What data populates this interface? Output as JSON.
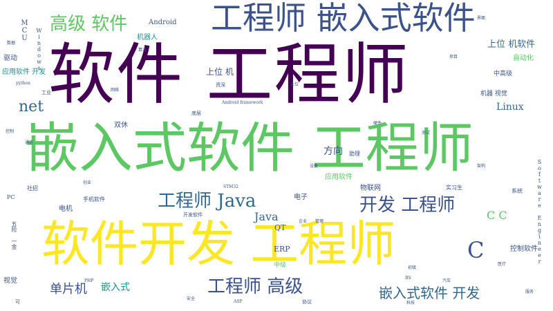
{
  "palette": {
    "dark_purple": "#440154",
    "indigo": "#3b528b",
    "teal": "#21908d",
    "green": "#5dc863",
    "yellow": "#fde725",
    "navy": "#31688e",
    "lime": "#a0da39"
  },
  "words": {
    "w_ruanjian_gongchengshi": "软件 工程师",
    "w_qianrushi_ruanjian_gongchengshi": "嵌入式软件 工程师",
    "w_ruanjian_kaifa_gongchengshi": "软件开发 工程师",
    "w_gongchengshi_qianrushi_ruanjian": "工程师 嵌入式软件",
    "w_gaoji_ruanjian": "高级 软件",
    "w_gongchengshi_java": "工程师 Java",
    "w_kaifa_gongchengshi": "开发 工程师",
    "w_gongchengshi_gaoji": "工程师 高级",
    "w_qianrushi_ruanjian_kaifa": "嵌入式软件 开发",
    "w_net": "net",
    "w_c": "C",
    "w_c_c": "C C",
    "w_java": "Java",
    "w_linux": "Linux",
    "w_danpianji": "单片机",
    "w_qianrushi": "嵌入式",
    "w_shangwei_ji": "上位 机",
    "w_shangwei_jiruanjian": "上位 机软件",
    "w_fangxiang": "方向",
    "w_qt": "QT",
    "w_erp": "ERP",
    "w_android": "Android",
    "w_jiqiren": "机器人",
    "w_qudong": "驱动",
    "w_yingyong_ruanjian_kaifa": "应用软件 开发",
    "w_shuangxiu": "双休",
    "w_dianji": "电机",
    "w_shijue": "视觉",
    "w_zidonghua": "自动化",
    "w_kongzhi_ruanjian": "控制软件",
    "w_yingyong_ruanjian": "应用软件",
    "w_wulianwang": "物联网",
    "w_dianzi": "电子",
    "w_zhongji": "中级",
    "w_jiqi_shijue": "机器 视觉",
    "w_zhonggaoji": "中高级",
    "w_mcu": "MCU",
    "w_windows": "Windows",
    "w_software_engineer": "Software Engineer",
    "w_wuxian_yijin": "五险 一金",
    "w_zhulang": "助理",
    "w_shouji_ruanjian": "手机软件",
    "w_kaifa_ruanjian": "开发软件",
    "w_xitong": "系统",
    "w_python": "python",
    "w_android_framework": "Android framework",
    "w_pc": "PC",
    "w_bs": "BS",
    "w_asp": "ASP",
    "w_php": "PHP",
    "w_stm32": "STM32",
    "w_gongye": "工业",
    "w_kuaisu": "资深",
    "w_dixin": "底层",
    "w_zhaopin": "社招",
    "w_xieyi": "协议",
    "w_shixisheng": "实习生",
    "w_chuanji": "初级",
    "w_shangwei": "上位",
    "w_chuangye": "创业",
    "w_qiye": "企业",
    "w_guanli": "管理",
    "w_ceshi": "测试",
    "w_suanfa": "算法",
    "w_yingjian": "硬件",
    "w_shebei": "设备",
    "w_xiangmu": "项目",
    "w_shuju": "数据",
    "w_jiemian": "界面",
    "w_tongxin": "通信",
    "w_kongzhi": "控制",
    "w_yiliao": "医疗",
    "w_qiche": "汽车",
    "w_wangluo": "网络",
    "w_anquan": "安全",
    "w_fuwu": "服务",
    "w_jiagou": "架构",
    "w_keji": "科技",
    "w_ke": "可"
  }
}
